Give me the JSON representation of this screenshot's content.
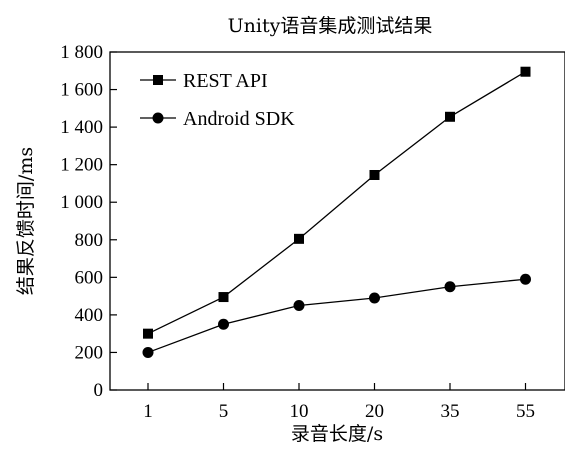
{
  "chart_data": {
    "type": "line",
    "title": "Unity语音集成测试结果",
    "xlabel": "录音长度/s",
    "ylabel": "结果反馈时间/ms",
    "categories": [
      "1",
      "5",
      "10",
      "20",
      "35",
      "55"
    ],
    "ylim": [
      0,
      1800
    ],
    "yticks": [
      0,
      200,
      400,
      600,
      800,
      1000,
      1200,
      1400,
      1600,
      1800
    ],
    "ytick_labels": [
      "0",
      "200",
      "400",
      "600",
      "800",
      "1 000",
      "1 200",
      "1 400",
      "1 600",
      "1 800"
    ],
    "grid": false,
    "legend_position": "top-left",
    "series": [
      {
        "name": "REST API",
        "marker": "square",
        "values": [
          300,
          495,
          805,
          1145,
          1455,
          1695
        ]
      },
      {
        "name": "Android SDK",
        "marker": "circle",
        "values": [
          200,
          350,
          450,
          490,
          550,
          590
        ]
      }
    ]
  }
}
